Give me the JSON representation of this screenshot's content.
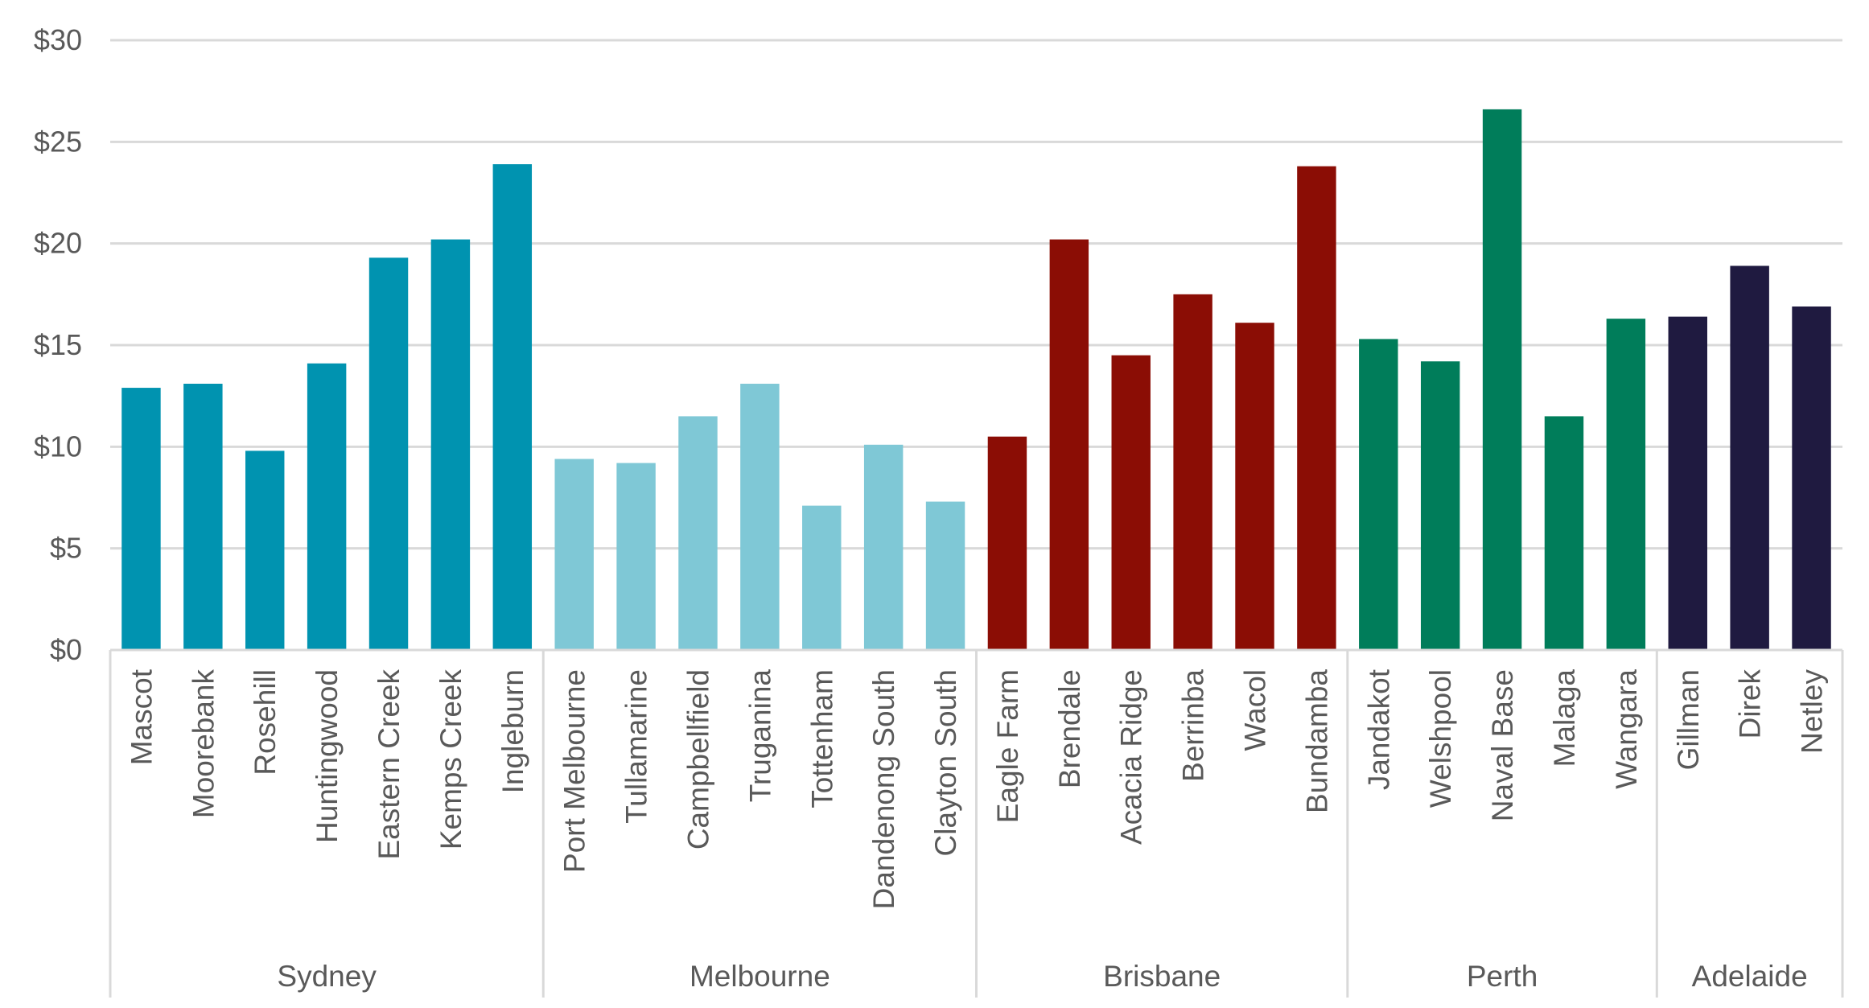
{
  "chart_data": {
    "type": "bar",
    "title": "",
    "xlabel": "",
    "ylabel": "",
    "ylim": [
      0,
      30
    ],
    "y_ticks": [
      {
        "value": 0,
        "label": "$0"
      },
      {
        "value": 5,
        "label": "$5"
      },
      {
        "value": 10,
        "label": "$10"
      },
      {
        "value": 15,
        "label": "$15"
      },
      {
        "value": 20,
        "label": "$20"
      },
      {
        "value": 25,
        "label": "$25"
      },
      {
        "value": 30,
        "label": "$30"
      }
    ],
    "grid": true,
    "groups": [
      {
        "name": "Sydney",
        "color": "#0093B0",
        "categories": [
          "Mascot",
          "Moorebank",
          "Rosehill",
          "Huntingwood",
          "Eastern Creek",
          "Kemps Creek",
          "Ingleburn"
        ],
        "values": [
          12.9,
          13.1,
          9.8,
          14.1,
          19.3,
          20.2,
          23.9
        ]
      },
      {
        "name": "Melbourne",
        "color": "#7FC8D6",
        "categories": [
          "Port Melbourne",
          "Tullamarine",
          "Campbellfield",
          "Truganina",
          "Tottenham",
          "Dandenong South",
          "Clayton South"
        ],
        "values": [
          9.4,
          9.2,
          11.5,
          13.1,
          7.1,
          10.1,
          7.3
        ]
      },
      {
        "name": "Brisbane",
        "color": "#8B0D05",
        "categories": [
          "Eagle Farm",
          "Brendale",
          "Acacia Ridge",
          "Berrinba",
          "Wacol",
          "Bundamba"
        ],
        "values": [
          10.5,
          20.2,
          14.5,
          17.5,
          16.1,
          23.8
        ]
      },
      {
        "name": "Perth",
        "color": "#007D5A",
        "categories": [
          "Jandakot",
          "Welshpool",
          "Naval Base",
          "Malaga",
          "Wangara"
        ],
        "values": [
          15.3,
          14.2,
          26.6,
          11.5,
          16.3
        ]
      },
      {
        "name": "Adelaide",
        "color": "#1F1A40",
        "categories": [
          "Gillman",
          "Direk",
          "Netley"
        ],
        "values": [
          16.4,
          18.9,
          16.9
        ]
      }
    ]
  }
}
